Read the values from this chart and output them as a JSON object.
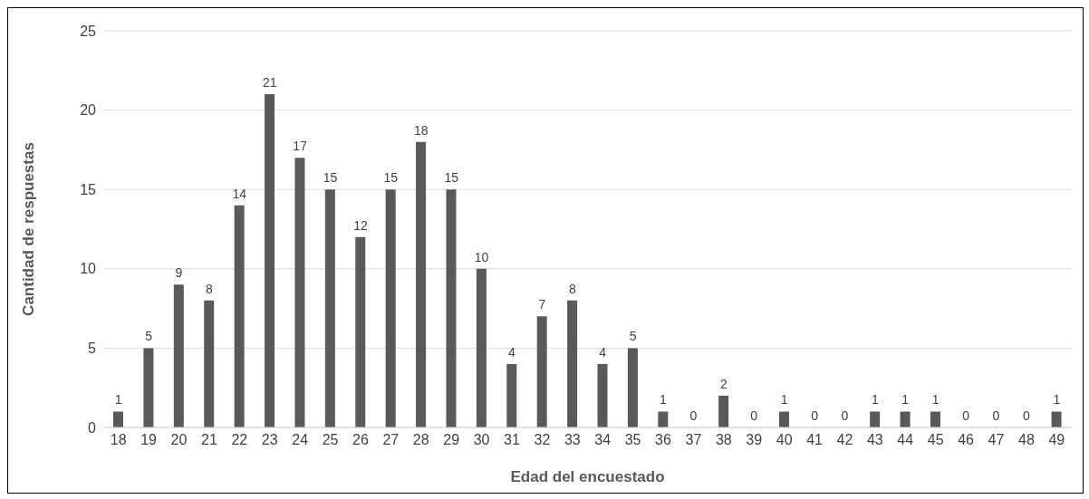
{
  "chart_data": {
    "type": "bar",
    "xlabel": "Edad del encuestado",
    "ylabel": "Cantidad de respuestas",
    "categories": [
      "18",
      "19",
      "20",
      "21",
      "22",
      "23",
      "24",
      "25",
      "26",
      "27",
      "28",
      "29",
      "30",
      "31",
      "32",
      "33",
      "34",
      "35",
      "36",
      "37",
      "38",
      "39",
      "40",
      "41",
      "42",
      "43",
      "44",
      "45",
      "46",
      "47",
      "48",
      "49"
    ],
    "values": [
      1,
      5,
      9,
      8,
      14,
      21,
      17,
      15,
      12,
      15,
      18,
      15,
      10,
      4,
      7,
      8,
      4,
      5,
      1,
      0,
      2,
      0,
      1,
      0,
      0,
      1,
      1,
      1,
      0,
      0,
      0,
      1
    ],
    "color": "#595959",
    "ylim": [
      0,
      25
    ],
    "yticks": [
      0,
      5,
      10,
      15,
      20,
      25
    ],
    "grid": "y",
    "data_labels": true,
    "legend": false
  }
}
